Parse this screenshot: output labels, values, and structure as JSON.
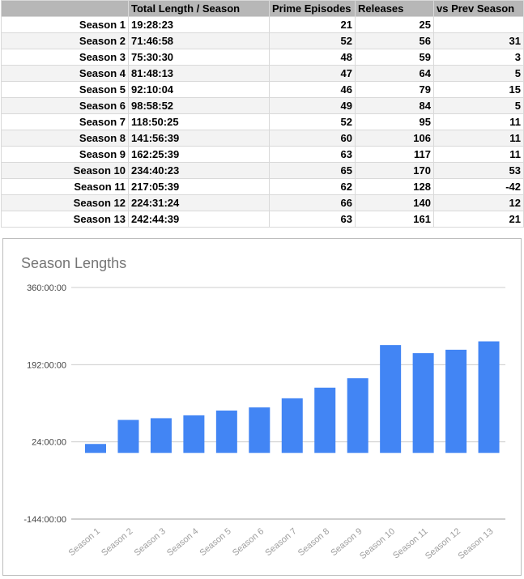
{
  "table": {
    "headers": [
      "",
      "Total Length / Season",
      "Prime Episodes",
      "Releases",
      "vs Prev Season"
    ],
    "rows": [
      [
        "Season 1",
        "19:28:23",
        "21",
        "25",
        ""
      ],
      [
        "Season 2",
        "71:46:58",
        "52",
        "56",
        "31"
      ],
      [
        "Season 3",
        "75:30:30",
        "48",
        "59",
        "3"
      ],
      [
        "Season 4",
        "81:48:13",
        "47",
        "64",
        "5"
      ],
      [
        "Season 5",
        "92:10:04",
        "46",
        "79",
        "15"
      ],
      [
        "Season 6",
        "98:58:52",
        "49",
        "84",
        "5"
      ],
      [
        "Season 7",
        "118:50:25",
        "52",
        "95",
        "11"
      ],
      [
        "Season 8",
        "141:56:39",
        "60",
        "106",
        "11"
      ],
      [
        "Season 9",
        "162:25:39",
        "63",
        "117",
        "11"
      ],
      [
        "Season 10",
        "234:40:23",
        "65",
        "170",
        "53"
      ],
      [
        "Season 11",
        "217:05:39",
        "62",
        "128",
        "-42"
      ],
      [
        "Season 12",
        "224:31:24",
        "66",
        "140",
        "12"
      ],
      [
        "Season 13",
        "242:44:39",
        "63",
        "161",
        "21"
      ]
    ]
  },
  "chart_data": {
    "type": "bar",
    "title": "Season Lengths",
    "categories": [
      "Season 1",
      "Season 2",
      "Season 3",
      "Season 4",
      "Season 5",
      "Season 6",
      "Season 7",
      "Season 8",
      "Season 9",
      "Season 10",
      "Season 11",
      "Season 12",
      "Season 13"
    ],
    "values_hours": [
      19.47,
      71.78,
      75.51,
      81.8,
      92.17,
      98.98,
      118.84,
      141.94,
      162.43,
      234.67,
      217.09,
      224.52,
      242.74
    ],
    "y_ticks": [
      {
        "value": 360,
        "label": "360:00:00"
      },
      {
        "value": 192,
        "label": "192:00:00"
      },
      {
        "value": 24,
        "label": "24:00:00"
      },
      {
        "value": -144,
        "label": "-144:00:00"
      }
    ],
    "ylim": [
      -144,
      360
    ],
    "bar_color": "#4285f4",
    "grid": true,
    "legend": "none"
  }
}
